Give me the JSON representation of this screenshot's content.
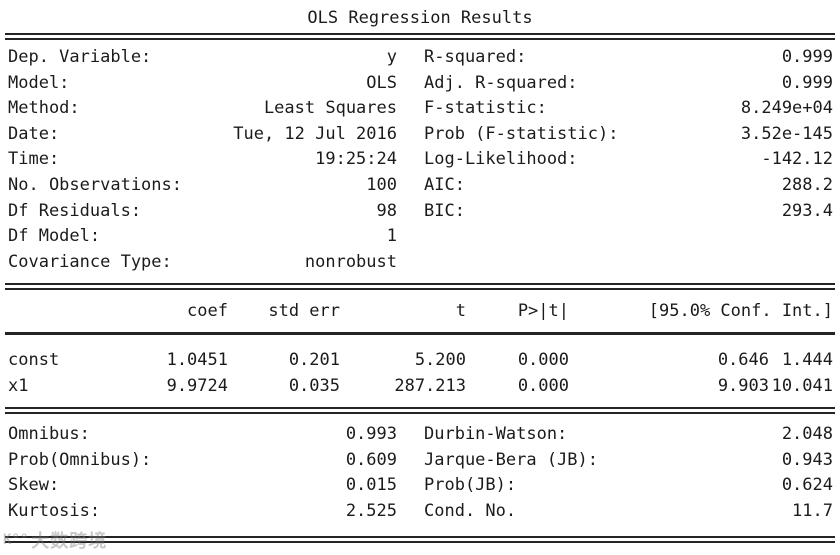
{
  "title": "OLS Regression Results",
  "summary": {
    "left": [
      {
        "label": "Dep. Variable:",
        "value": "y"
      },
      {
        "label": "Model:",
        "value": "OLS"
      },
      {
        "label": "Method:",
        "value": "Least Squares"
      },
      {
        "label": "Date:",
        "value": "Tue, 12 Jul 2016"
      },
      {
        "label": "Time:",
        "value": "19:25:24"
      },
      {
        "label": "No. Observations:",
        "value": "100"
      },
      {
        "label": "Df Residuals:",
        "value": "98"
      },
      {
        "label": "Df Model:",
        "value": "1"
      },
      {
        "label": "Covariance Type:",
        "value": "nonrobust"
      }
    ],
    "right": [
      {
        "label": "R-squared:",
        "value": "0.999"
      },
      {
        "label": "Adj. R-squared:",
        "value": "0.999"
      },
      {
        "label": "F-statistic:",
        "value": "8.249e+04"
      },
      {
        "label": "Prob (F-statistic):",
        "value": "3.52e-145"
      },
      {
        "label": "Log-Likelihood:",
        "value": "-142.12"
      },
      {
        "label": "AIC:",
        "value": "288.2"
      },
      {
        "label": "BIC:",
        "value": "293.4"
      }
    ]
  },
  "coef_table": {
    "headers": {
      "coef": "coef",
      "std_err": "std err",
      "t": "t",
      "p": "P>|t|",
      "conf_int": "[95.0% Conf. Int.]"
    },
    "rows": [
      {
        "name": "const",
        "coef": "1.0451",
        "std_err": "0.201",
        "t": "5.200",
        "p": "0.000",
        "ci_low": "0.646",
        "ci_high": "1.444"
      },
      {
        "name": "x1",
        "coef": "9.9724",
        "std_err": "0.035",
        "t": "287.213",
        "p": "0.000",
        "ci_low": "9.903",
        "ci_high": "10.041"
      }
    ]
  },
  "diagnostics": {
    "left": [
      {
        "label": "Omnibus:",
        "value": "0.993"
      },
      {
        "label": "Prob(Omnibus):",
        "value": "0.609"
      },
      {
        "label": "Skew:",
        "value": "0.015"
      },
      {
        "label": "Kurtosis:",
        "value": "2.525"
      }
    ],
    "right": [
      {
        "label": "Durbin-Watson:",
        "value": "2.048"
      },
      {
        "label": "Jarque-Bera (JB):",
        "value": "0.943"
      },
      {
        "label": "Prob(JB):",
        "value": "0.624"
      },
      {
        "label": "Cond. No.",
        "value": "11.7"
      }
    ]
  },
  "watermark": {
    "logo": "K°°",
    "text": "大数跨境"
  },
  "colors": {
    "background": "#ffffff",
    "text": "#1b1b1b",
    "rule": "#242424",
    "watermark": "#7d7d7d"
  }
}
